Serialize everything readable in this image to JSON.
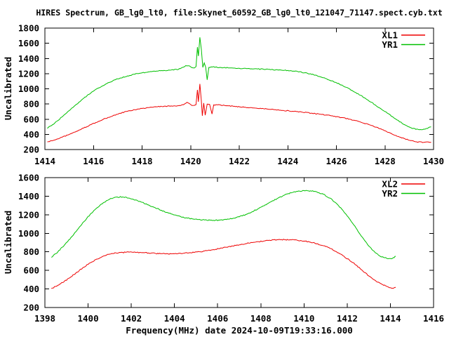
{
  "title": "HIRES Spectrum, GB_lg0_lt0, file:Skynet_60592_GB_lg0_lt0_121047_71147.spect.cyb.txt",
  "colors": {
    "background": "#ffffff",
    "axis": "#000000",
    "text": "#000000",
    "xl_red": "#ee0000",
    "yr_green": "#00c000"
  },
  "chart_data": [
    {
      "type": "line",
      "panel": "upper",
      "ylabel": "Uncalibrated",
      "xlabel": "",
      "xlim": [
        1414,
        1430
      ],
      "ylim": [
        200,
        1800
      ],
      "xticks": [
        1414,
        1416,
        1418,
        1420,
        1422,
        1424,
        1426,
        1428,
        1430
      ],
      "yticks": [
        200,
        400,
        600,
        800,
        1000,
        1200,
        1400,
        1600,
        1800
      ],
      "grid": false,
      "legend_position": "top-right",
      "legend": [
        "XL1",
        "YR1"
      ],
      "series": [
        {
          "name": "XL1",
          "color": "#ee0000",
          "points": [
            [
              1414.1,
              300
            ],
            [
              1414.4,
              326
            ],
            [
              1414.7,
              362
            ],
            [
              1415.0,
              398
            ],
            [
              1415.3,
              440
            ],
            [
              1415.6,
              484
            ],
            [
              1415.9,
              528
            ],
            [
              1416.2,
              570
            ],
            [
              1416.5,
              610
            ],
            [
              1416.8,
              645
            ],
            [
              1417.1,
              678
            ],
            [
              1417.4,
              704
            ],
            [
              1417.7,
              724
            ],
            [
              1418.0,
              741
            ],
            [
              1418.3,
              754
            ],
            [
              1418.6,
              763
            ],
            [
              1418.9,
              770
            ],
            [
              1419.2,
              774
            ],
            [
              1419.5,
              778
            ],
            [
              1419.7,
              790
            ],
            [
              1419.85,
              822
            ],
            [
              1419.95,
              806
            ],
            [
              1420.05,
              780
            ],
            [
              1420.15,
              782
            ],
            [
              1420.22,
              792
            ],
            [
              1420.28,
              985
            ],
            [
              1420.32,
              830
            ],
            [
              1420.38,
              1065
            ],
            [
              1420.44,
              840
            ],
            [
              1420.48,
              645
            ],
            [
              1420.54,
              812
            ],
            [
              1420.6,
              652
            ],
            [
              1420.68,
              798
            ],
            [
              1420.78,
              795
            ],
            [
              1420.88,
              668
            ],
            [
              1420.95,
              788
            ],
            [
              1421.1,
              788
            ],
            [
              1421.4,
              780
            ],
            [
              1421.8,
              770
            ],
            [
              1422.2,
              758
            ],
            [
              1422.6,
              748
            ],
            [
              1423.0,
              738
            ],
            [
              1423.4,
              728
            ],
            [
              1423.8,
              716
            ],
            [
              1424.2,
              704
            ],
            [
              1424.6,
              692
            ],
            [
              1425.0,
              678
            ],
            [
              1425.4,
              662
            ],
            [
              1425.8,
              644
            ],
            [
              1426.2,
              622
            ],
            [
              1426.6,
              596
            ],
            [
              1427.0,
              562
            ],
            [
              1427.4,
              522
            ],
            [
              1427.8,
              474
            ],
            [
              1428.2,
              420
            ],
            [
              1428.6,
              365
            ],
            [
              1429.0,
              322
            ],
            [
              1429.3,
              302
            ],
            [
              1429.6,
              295
            ],
            [
              1429.9,
              297
            ]
          ]
        },
        {
          "name": "YR1",
          "color": "#00c000",
          "points": [
            [
              1414.1,
              478
            ],
            [
              1414.4,
              548
            ],
            [
              1414.7,
              628
            ],
            [
              1415.0,
              712
            ],
            [
              1415.3,
              796
            ],
            [
              1415.6,
              876
            ],
            [
              1415.9,
              948
            ],
            [
              1416.2,
              1010
            ],
            [
              1416.5,
              1062
            ],
            [
              1416.8,
              1106
            ],
            [
              1417.1,
              1142
            ],
            [
              1417.4,
              1170
            ],
            [
              1417.7,
              1192
            ],
            [
              1418.0,
              1210
            ],
            [
              1418.3,
              1224
            ],
            [
              1418.6,
              1234
            ],
            [
              1418.9,
              1242
            ],
            [
              1419.2,
              1248
            ],
            [
              1419.5,
              1256
            ],
            [
              1419.65,
              1280
            ],
            [
              1419.8,
              1306
            ],
            [
              1419.95,
              1302
            ],
            [
              1420.05,
              1278
            ],
            [
              1420.15,
              1274
            ],
            [
              1420.22,
              1292
            ],
            [
              1420.28,
              1548
            ],
            [
              1420.32,
              1432
            ],
            [
              1420.38,
              1678
            ],
            [
              1420.44,
              1520
            ],
            [
              1420.5,
              1282
            ],
            [
              1420.56,
              1342
            ],
            [
              1420.62,
              1284
            ],
            [
              1420.68,
              1118
            ],
            [
              1420.75,
              1282
            ],
            [
              1420.9,
              1288
            ],
            [
              1421.2,
              1282
            ],
            [
              1421.6,
              1276
            ],
            [
              1422.0,
              1270
            ],
            [
              1422.5,
              1264
            ],
            [
              1423.0,
              1258
            ],
            [
              1423.5,
              1250
            ],
            [
              1424.0,
              1242
            ],
            [
              1424.4,
              1228
            ],
            [
              1424.8,
              1206
            ],
            [
              1425.2,
              1174
            ],
            [
              1425.6,
              1132
            ],
            [
              1426.0,
              1080
            ],
            [
              1426.4,
              1020
            ],
            [
              1426.8,
              950
            ],
            [
              1427.2,
              872
            ],
            [
              1427.6,
              788
            ],
            [
              1428.0,
              700
            ],
            [
              1428.4,
              610
            ],
            [
              1428.8,
              528
            ],
            [
              1429.1,
              482
            ],
            [
              1429.4,
              462
            ],
            [
              1429.65,
              468
            ],
            [
              1429.9,
              498
            ]
          ]
        }
      ]
    },
    {
      "type": "line",
      "panel": "lower",
      "ylabel": "Uncalibrated",
      "xlabel": "Frequency(MHz) date 2024-10-09T19:33:16.000",
      "xlim": [
        1398,
        1416
      ],
      "ylim": [
        200,
        1600
      ],
      "xticks": [
        1398,
        1400,
        1402,
        1404,
        1406,
        1408,
        1410,
        1412,
        1414,
        1416
      ],
      "yticks": [
        200,
        400,
        600,
        800,
        1000,
        1200,
        1400,
        1600
      ],
      "grid": false,
      "legend_position": "top-right",
      "legend": [
        "XL2",
        "YR2"
      ],
      "series": [
        {
          "name": "XL2",
          "color": "#ee0000",
          "points": [
            [
              1398.3,
              405
            ],
            [
              1398.6,
              440
            ],
            [
              1398.9,
              482
            ],
            [
              1399.2,
              530
            ],
            [
              1399.5,
              582
            ],
            [
              1399.8,
              634
            ],
            [
              1400.1,
              682
            ],
            [
              1400.4,
              722
            ],
            [
              1400.7,
              754
            ],
            [
              1401.0,
              775
            ],
            [
              1401.3,
              788
            ],
            [
              1401.6,
              794
            ],
            [
              1401.9,
              796
            ],
            [
              1402.2,
              794
            ],
            [
              1402.5,
              791
            ],
            [
              1402.8,
              788
            ],
            [
              1403.1,
              784
            ],
            [
              1403.4,
              781
            ],
            [
              1403.7,
              779
            ],
            [
              1404.0,
              780
            ],
            [
              1404.3,
              783
            ],
            [
              1404.6,
              787
            ],
            [
              1404.9,
              793
            ],
            [
              1405.2,
              801
            ],
            [
              1405.5,
              812
            ],
            [
              1405.8,
              824
            ],
            [
              1406.1,
              836
            ],
            [
              1406.4,
              850
            ],
            [
              1406.7,
              863
            ],
            [
              1407.0,
              876
            ],
            [
              1407.3,
              888
            ],
            [
              1407.6,
              900
            ],
            [
              1407.9,
              910
            ],
            [
              1408.2,
              919
            ],
            [
              1408.5,
              926
            ],
            [
              1408.8,
              930
            ],
            [
              1409.1,
              931
            ],
            [
              1409.4,
              929
            ],
            [
              1409.7,
              924
            ],
            [
              1410.0,
              916
            ],
            [
              1410.3,
              904
            ],
            [
              1410.6,
              888
            ],
            [
              1410.9,
              866
            ],
            [
              1411.2,
              838
            ],
            [
              1411.5,
              802
            ],
            [
              1411.8,
              760
            ],
            [
              1412.1,
              712
            ],
            [
              1412.4,
              658
            ],
            [
              1412.7,
              600
            ],
            [
              1413.0,
              540
            ],
            [
              1413.3,
              492
            ],
            [
              1413.6,
              452
            ],
            [
              1413.9,
              422
            ],
            [
              1414.1,
              408
            ],
            [
              1414.25,
              418
            ]
          ]
        },
        {
          "name": "YR2",
          "color": "#00c000",
          "points": [
            [
              1398.3,
              742
            ],
            [
              1398.6,
              800
            ],
            [
              1398.9,
              872
            ],
            [
              1399.2,
              952
            ],
            [
              1399.5,
              1038
            ],
            [
              1399.8,
              1124
            ],
            [
              1400.1,
              1205
            ],
            [
              1400.4,
              1272
            ],
            [
              1400.7,
              1328
            ],
            [
              1401.0,
              1368
            ],
            [
              1401.3,
              1390
            ],
            [
              1401.6,
              1392
            ],
            [
              1401.9,
              1380
            ],
            [
              1402.2,
              1360
            ],
            [
              1402.5,
              1334
            ],
            [
              1402.8,
              1306
            ],
            [
              1403.1,
              1276
            ],
            [
              1403.4,
              1248
            ],
            [
              1403.7,
              1222
            ],
            [
              1404.0,
              1198
            ],
            [
              1404.3,
              1178
            ],
            [
              1404.6,
              1163
            ],
            [
              1404.9,
              1152
            ],
            [
              1405.2,
              1145
            ],
            [
              1405.5,
              1141
            ],
            [
              1405.8,
              1140
            ],
            [
              1406.1,
              1142
            ],
            [
              1406.4,
              1148
            ],
            [
              1406.7,
              1160
            ],
            [
              1407.0,
              1178
            ],
            [
              1407.3,
              1202
            ],
            [
              1407.6,
              1232
            ],
            [
              1407.9,
              1268
            ],
            [
              1408.2,
              1306
            ],
            [
              1408.5,
              1344
            ],
            [
              1408.8,
              1380
            ],
            [
              1409.1,
              1412
            ],
            [
              1409.4,
              1436
            ],
            [
              1409.7,
              1452
            ],
            [
              1410.0,
              1460
            ],
            [
              1410.3,
              1458
            ],
            [
              1410.6,
              1446
            ],
            [
              1410.9,
              1420
            ],
            [
              1411.2,
              1380
            ],
            [
              1411.5,
              1322
            ],
            [
              1411.8,
              1248
            ],
            [
              1412.1,
              1158
            ],
            [
              1412.4,
              1060
            ],
            [
              1412.7,
              958
            ],
            [
              1413.0,
              862
            ],
            [
              1413.3,
              790
            ],
            [
              1413.6,
              745
            ],
            [
              1413.9,
              726
            ],
            [
              1414.1,
              730
            ],
            [
              1414.25,
              752
            ]
          ]
        }
      ]
    }
  ]
}
